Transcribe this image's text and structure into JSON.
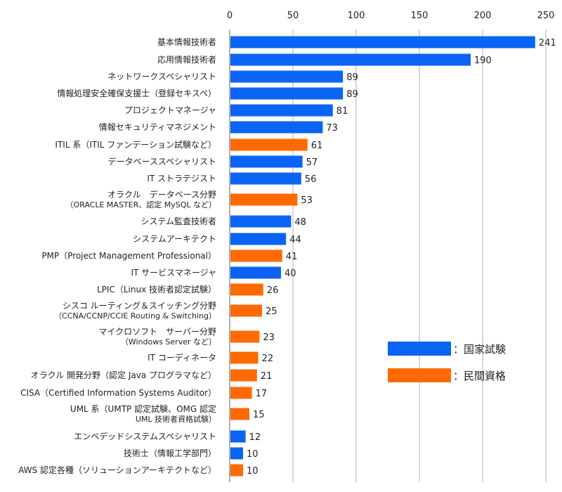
{
  "chart_data": {
    "type": "bar",
    "orientation": "horizontal",
    "title": "",
    "xlabel": "",
    "ylabel": "",
    "xlim": [
      0,
      250
    ],
    "x_ticks": [
      0,
      50,
      100,
      150,
      200,
      250
    ],
    "grid": true,
    "legend_position": "center-right",
    "colors": {
      "national": "#0A64F5",
      "private": "#FF6A00"
    },
    "legend": [
      {
        "key": "national",
        "label": "：国家試験"
      },
      {
        "key": "private",
        "label": "：民間資格"
      }
    ],
    "categories": [
      {
        "label": [
          "基本情報技術者"
        ],
        "value": 241,
        "type": "national"
      },
      {
        "label": [
          "応用情報技術者"
        ],
        "value": 190,
        "type": "national"
      },
      {
        "label": [
          "ネットワークスペシャリスト"
        ],
        "value": 89,
        "type": "national"
      },
      {
        "label": [
          "情報処理安全確保支援士（登録セキスペ）"
        ],
        "value": 89,
        "type": "national"
      },
      {
        "label": [
          "プロジェクトマネージャ"
        ],
        "value": 81,
        "type": "national"
      },
      {
        "label": [
          "情報セキュリティマネジメント"
        ],
        "value": 73,
        "type": "national"
      },
      {
        "label": [
          "ITIL 系（ITIL ファンデーション試験など）"
        ],
        "value": 61,
        "type": "private"
      },
      {
        "label": [
          "データベーススペシャリスト"
        ],
        "value": 57,
        "type": "national"
      },
      {
        "label": [
          "IT ストラテジスト"
        ],
        "value": 56,
        "type": "national"
      },
      {
        "label": [
          "オラクル　データベース分野",
          "（ORACLE MASTER、認定 MySQL など）"
        ],
        "value": 53,
        "type": "private"
      },
      {
        "label": [
          "システム監査技術者"
        ],
        "value": 48,
        "type": "national"
      },
      {
        "label": [
          "システムアーキテクト"
        ],
        "value": 44,
        "type": "national"
      },
      {
        "label": [
          "PMP（Project Management Professional）"
        ],
        "value": 41,
        "type": "private"
      },
      {
        "label": [
          "IT サービスマネージャ"
        ],
        "value": 40,
        "type": "national"
      },
      {
        "label": [
          "LPIC（Linux 技術者認定試験）"
        ],
        "value": 26,
        "type": "private"
      },
      {
        "label": [
          "シスコ ルーティング＆スイッチング分野",
          "（CCNA/CCNP/CCIE Routing & Switching）"
        ],
        "value": 25,
        "type": "private"
      },
      {
        "label": [
          "マイクロソフト　サーバー分野",
          "（Windows Server など）"
        ],
        "value": 23,
        "type": "private"
      },
      {
        "label": [
          "IT コーディネータ"
        ],
        "value": 22,
        "type": "private"
      },
      {
        "label": [
          "オラクル 開発分野（認定 Java プログラマなど）"
        ],
        "value": 21,
        "type": "private"
      },
      {
        "label": [
          "CISA（Certified Information Systems Auditor）"
        ],
        "value": 17,
        "type": "private"
      },
      {
        "label": [
          "UML 系（UMTP 認定試験、OMG 認定",
          "UML 技術者資格試験）"
        ],
        "value": 15,
        "type": "private"
      },
      {
        "label": [
          "エンベデッドシステムスペシャリスト"
        ],
        "value": 12,
        "type": "national"
      },
      {
        "label": [
          "技術士（情報工学部門）"
        ],
        "value": 10,
        "type": "national"
      },
      {
        "label": [
          "AWS 認定各種（ソリューションアーキテクトなど）"
        ],
        "value": 10,
        "type": "private"
      }
    ]
  }
}
